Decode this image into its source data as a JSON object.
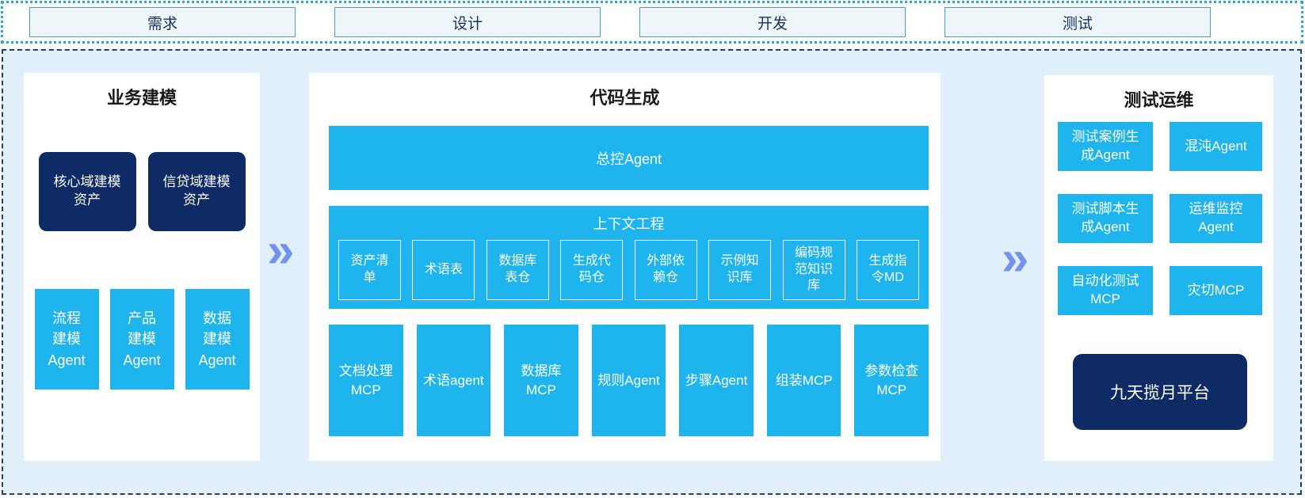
{
  "colors": {
    "accent_cyan": "#1eb4ee",
    "navy": "#0e2b66",
    "container_bg": "#e0effa",
    "stage_fill": "#eff6fa",
    "stage_border": "#4aa0c6",
    "dotted_border": "#2aa9d5",
    "dashed_border": "#20406e",
    "chevron_blue": "#7193ec"
  },
  "stages": [
    {
      "label": "需求"
    },
    {
      "label": "设计"
    },
    {
      "label": "开发"
    },
    {
      "label": "测试"
    }
  ],
  "arrows": {
    "glyph": "»"
  },
  "panels": {
    "business_modeling": {
      "title": "业务建模",
      "asset_boxes": [
        {
          "label": "核心域建模\n资产"
        },
        {
          "label": "信贷域建模\n资产"
        }
      ],
      "agent_boxes": [
        {
          "label": "流程\n建模\nAgent"
        },
        {
          "label": "产品\n建模\nAgent"
        },
        {
          "label": "数据\n建模\nAgent"
        }
      ]
    },
    "code_generation": {
      "title": "代码生成",
      "master_agent": "总控Agent",
      "context_engineering": {
        "title": "上下文工程",
        "items": [
          "资产清\n单",
          "术语表",
          "数据库\n表仓",
          "生成代\n码仓",
          "外部依\n赖仓",
          "示例知\n识库",
          "编码规\n范知识\n库",
          "生成指\n令MD"
        ]
      },
      "mcp_agents": [
        "文档处理\nMCP",
        "术语agent",
        "数据库\nMCP",
        "规则Agent",
        "步骤Agent",
        "组装MCP",
        "参数检查\nMCP"
      ]
    },
    "test_ops": {
      "title": "测试运维",
      "boxes": [
        "测试案例生\n成Agent",
        "混沌Agent",
        "测试脚本生\n成Agent",
        "运维监控\nAgent",
        "自动化测试\nMCP",
        "灾切MCP"
      ],
      "platform": "九天揽月平台"
    }
  }
}
